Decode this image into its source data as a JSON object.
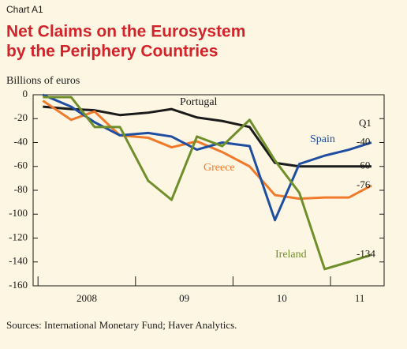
{
  "chart_data": {
    "type": "line",
    "label": "Chart A1",
    "title": "Net Claims on the Eurosystem",
    "subtitle": "by the Periphery Countries",
    "ylabel": "Billions of euros",
    "annotation": "Q1",
    "source": "Sources: International Monetary Fund; Haver Analytics.",
    "x": [
      2008.05,
      2008.34,
      2008.58,
      2008.84,
      2009.13,
      2009.37,
      2009.63,
      2009.89,
      2010.17,
      2010.43,
      2010.68,
      2010.94,
      2011.19,
      2011.42
    ],
    "series": [
      {
        "name": "Portugal",
        "color": "#1a1a1a",
        "values": [
          -10,
          -12,
          -13,
          -17,
          -15,
          -12,
          -19,
          -22,
          -27,
          -57,
          -60,
          -60,
          -60,
          -60
        ]
      },
      {
        "name": "Greece",
        "color": "#f07a2c",
        "values": [
          -5,
          -21,
          -14,
          -34,
          -36,
          -44,
          -39,
          -48,
          -60,
          -84,
          -87,
          -86,
          -86,
          -76
        ]
      },
      {
        "name": "Spain",
        "color": "#1f4ea1",
        "values": [
          0,
          -10,
          -23,
          -34,
          -32,
          -35,
          -46,
          -40,
          -43,
          -105,
          -58,
          -51,
          -46,
          -40
        ]
      },
      {
        "name": "Ireland",
        "color": "#6f8f2a",
        "values": [
          -2,
          -2,
          -27,
          -27,
          -72,
          -88,
          -35,
          -43,
          -21,
          -55,
          -82,
          -146,
          -140,
          -134
        ]
      }
    ],
    "xlim": [
      2007.95,
      2011.55
    ],
    "xticks": [
      {
        "value": 2008.5,
        "label": "2008"
      },
      {
        "value": 2009.5,
        "label": "09"
      },
      {
        "value": 2010.5,
        "label": "10"
      },
      {
        "value": 2011.3,
        "label": "11"
      }
    ],
    "xtick_marks": [
      2008,
      2009,
      2010,
      2011
    ],
    "ylim": [
      -160,
      0
    ],
    "yticks": [
      0,
      -20,
      -40,
      -60,
      -80,
      -100,
      -120,
      -140,
      -160
    ]
  }
}
